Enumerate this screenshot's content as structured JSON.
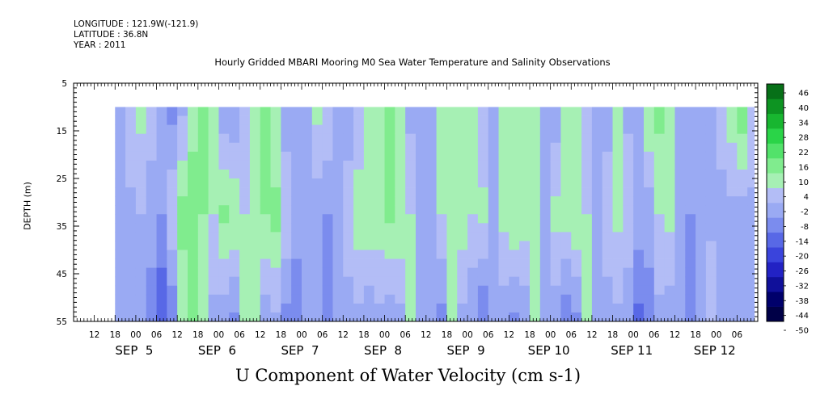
{
  "header": {
    "longitude": "LONGITUDE : 121.9W(-121.9)",
    "latitude": "LATITUDE : 36.8N",
    "year": "YEAR : 2011"
  },
  "chart_data": {
    "type": "heatmap",
    "title": "Hourly Gridded MBARI Mooring M0 Sea Water Temperature and Salinity Observations",
    "xlabel": "U Component of Water Velocity (cm s-1)",
    "ylabel": "DEPTH (m)",
    "ylim": [
      55,
      5
    ],
    "y_ticks": [
      5,
      15,
      25,
      35,
      45,
      55
    ],
    "data_depth_range": [
      10,
      55
    ],
    "x_range_hours": [
      -18,
      180
    ],
    "data_x_range_hours": [
      -6,
      179
    ],
    "x_hour_labels": [
      "12",
      "18",
      "00",
      "06",
      "12",
      "18",
      "00",
      "06",
      "12",
      "18",
      "00",
      "06",
      "12",
      "18",
      "00",
      "06",
      "12",
      "18",
      "00",
      "06",
      "12",
      "18",
      "00",
      "06",
      "12",
      "18",
      "00",
      "06",
      "12",
      "18",
      "00",
      "06"
    ],
    "x_day_labels": [
      "SEP  5",
      "SEP  6",
      "SEP  7",
      "SEP  8",
      "SEP  9",
      "SEP 10",
      "SEP 11",
      "SEP 12"
    ],
    "colorbar": {
      "levels": [
        -50,
        -44,
        -38,
        -32,
        -26,
        -20,
        -14,
        -8,
        -2,
        4,
        10,
        16,
        22,
        28,
        34,
        40,
        46
      ],
      "labels": [
        "46",
        "40",
        "34",
        "28",
        "22",
        "16",
        "10",
        "4",
        "-2",
        "-8",
        "-14",
        "-20",
        "-26",
        "-32",
        "-38",
        "-44",
        "-50"
      ]
    },
    "column_profiles": {
      "x_hours": [
        -6,
        -3,
        0,
        3,
        6,
        9,
        12,
        15,
        18,
        21,
        24,
        27,
        30,
        33,
        36,
        39,
        42,
        45,
        48,
        51,
        54,
        57,
        60,
        63,
        66,
        69,
        72,
        75,
        78,
        81,
        84,
        87,
        90,
        93,
        96,
        99,
        102,
        105,
        108,
        111,
        114,
        117,
        120,
        123,
        126,
        129,
        132,
        135,
        138,
        141,
        144,
        147,
        150,
        153,
        156,
        159,
        162,
        165,
        168,
        171,
        174,
        177
      ],
      "top_cm_s": [
        -4,
        4,
        6,
        2,
        -8,
        -10,
        -4,
        6,
        12,
        4,
        -6,
        -8,
        2,
        10,
        12,
        4,
        -6,
        -8,
        -2,
        6,
        4,
        -4,
        -8,
        -2,
        4,
        10,
        12,
        6,
        -4,
        -8,
        -6,
        4,
        6,
        10,
        6,
        -2,
        -6,
        4,
        6,
        10,
        4,
        -4,
        -6,
        4,
        6,
        -2,
        -8,
        -6,
        4,
        -4,
        -6,
        10,
        12,
        4,
        -6,
        -4,
        -8,
        -2,
        4,
        8,
        16,
        4
      ],
      "mid_cm_s": [
        -6,
        -4,
        -2,
        -6,
        -8,
        4,
        12,
        16,
        10,
        4,
        12,
        10,
        4,
        6,
        10,
        12,
        4,
        -4,
        -8,
        -6,
        -8,
        -4,
        4,
        8,
        10,
        8,
        12,
        10,
        4,
        -4,
        -2,
        4,
        10,
        8,
        4,
        6,
        -4,
        6,
        10,
        8,
        4,
        -4,
        6,
        8,
        10,
        4,
        -2,
        4,
        6,
        4,
        -4,
        -6,
        4,
        6,
        -6,
        -8,
        -6,
        -4,
        -6,
        -4,
        -6,
        -4
      ],
      "bottom_cm_s": [
        -6,
        -8,
        -4,
        -10,
        -20,
        -14,
        6,
        10,
        4,
        -4,
        -6,
        -10,
        4,
        6,
        -6,
        -4,
        -10,
        -14,
        -8,
        -4,
        -10,
        -8,
        -6,
        -4,
        -8,
        -4,
        -6,
        -4,
        4,
        -6,
        -4,
        -10,
        4,
        -4,
        -8,
        -14,
        -8,
        -6,
        -10,
        -8,
        6,
        -4,
        -6,
        -14,
        -10,
        4,
        -4,
        -6,
        -4,
        -8,
        -16,
        -10,
        -4,
        -6,
        -8,
        -10,
        -6,
        4,
        -4,
        -6,
        -8,
        -6
      ]
    },
    "colormap": "blue-green (negative blue, positive green)",
    "grid": false,
    "legend": "colorbar right"
  }
}
